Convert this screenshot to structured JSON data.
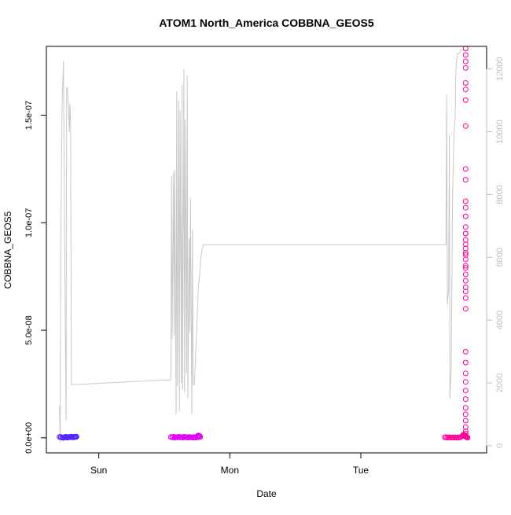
{
  "chart_data": {
    "type": "scatter",
    "title": "ATOM1 North_America COBBNA_GEOS5",
    "xlabel": "Date",
    "ylabel": "COBBNA_GEOS5",
    "x_ticks": [
      {
        "label": "Sun",
        "t": 1.0
      },
      {
        "label": "Mon",
        "t": 2.0
      },
      {
        "label": "Tue",
        "t": 3.0
      }
    ],
    "xlim": [
      0.6,
      3.96
    ],
    "ylim": [
      -7e-09,
      1.82e-07
    ],
    "y_ticks": [
      "0.0e+00",
      "5.0e-08",
      "1.0e-07",
      "1.5e-07"
    ],
    "y_tick_values": [
      0,
      5e-08,
      1e-07,
      1.5e-07
    ],
    "y2lim": [
      -230,
      12720
    ],
    "y2_ticks": [
      "0",
      "2000",
      "4000",
      "6000",
      "8000",
      "10000",
      "12000"
    ],
    "y2_tick_values": [
      0,
      2000,
      4000,
      6000,
      8000,
      10000,
      12000
    ],
    "colors": {
      "axis": "#000000",
      "secondary_axis": "#bebebe",
      "line": "#c8c8c8"
    },
    "series": [
      {
        "role": "secondary-line",
        "axis": "right",
        "color": "#c8c8c8",
        "x": [
          0.7,
          0.705,
          0.71,
          0.72,
          0.73,
          0.74,
          0.75,
          0.755,
          0.76,
          0.77,
          0.775,
          0.78,
          0.785,
          0.79,
          0.8,
          0.81,
          0.815,
          0.82,
          0.83,
          1.55,
          1.555,
          1.56,
          1.57,
          1.575,
          1.58,
          1.59,
          1.595,
          1.6,
          1.61,
          1.615,
          1.62,
          1.63,
          1.635,
          1.64,
          1.65,
          1.655,
          1.66,
          1.67,
          1.675,
          1.68,
          1.69,
          1.695,
          1.7,
          1.71,
          1.715,
          1.72,
          1.73,
          1.74,
          1.75,
          1.755,
          1.76,
          1.77,
          1.78,
          1.79,
          1.8,
          3.65,
          3.655,
          3.66,
          3.67,
          3.675,
          3.68,
          3.69,
          3.695,
          3.7,
          3.71,
          3.72,
          3.725,
          3.73,
          3.735,
          3.74,
          3.75,
          3.755,
          3.76,
          3.77,
          3.78,
          3.8,
          3.81,
          3.82
        ],
        "y": [
          1250,
          100,
          6200,
          10900,
          12250,
          6300,
          800,
          11400,
          11400,
          10700,
          10000,
          10900,
          10200,
          1950,
          1950,
          1950,
          1950,
          1950,
          1950,
          2100,
          8600,
          3400,
          8700,
          3500,
          8800,
          1000,
          11300,
          1900,
          11000,
          1100,
          10700,
          2000,
          11500,
          1800,
          12000,
          1700,
          10400,
          2300,
          11800,
          1500,
          6600,
          3600,
          7900,
          1000,
          6900,
          1950,
          1950,
          3000,
          4000,
          4500,
          5000,
          5500,
          6000,
          6300,
          6400,
          6400,
          11200,
          4500,
          5000,
          9900,
          1500,
          2500,
          5200,
          8000,
          9800,
          10500,
          11900,
          12300,
          12300,
          12500,
          12500,
          12500,
          12600,
          12600,
          12600,
          12600,
          12600,
          12600
        ]
      },
      {
        "role": "points-sat",
        "axis": "left",
        "color": "#5522ff",
        "x": [
          0.7,
          0.71,
          0.72,
          0.73,
          0.74,
          0.75,
          0.76,
          0.77,
          0.78,
          0.79,
          0.8,
          0.81,
          0.72,
          0.74,
          0.76,
          0.78,
          0.8,
          0.815,
          0.825,
          0.82,
          0.71,
          0.73,
          0.75,
          0.77,
          0.79,
          0.81,
          0.83
        ],
        "y": [
          4e-10,
          3e-10,
          2e-10,
          0.0,
          4e-10,
          5e-10,
          3e-10,
          2e-10,
          4e-10,
          6e-10,
          3e-10,
          5e-10,
          1e-10,
          2e-10,
          1e-10,
          3e-10,
          2e-10,
          4e-10,
          6e-10,
          4e-10,
          4e-10,
          1e-10,
          2e-10,
          4e-10,
          3e-10,
          2e-10,
          5e-10
        ]
      },
      {
        "role": "points-mon",
        "axis": "left",
        "color": "#dd00ee",
        "x": [
          1.55,
          1.56,
          1.57,
          1.58,
          1.59,
          1.6,
          1.61,
          1.62,
          1.63,
          1.64,
          1.65,
          1.66,
          1.67,
          1.68,
          1.69,
          1.7,
          1.71,
          1.72,
          1.73,
          1.74,
          1.75,
          1.755,
          1.76,
          1.765,
          1.77,
          1.775,
          1.56,
          1.58,
          1.6,
          1.62,
          1.64,
          1.66,
          1.68,
          1.7,
          1.72,
          1.74,
          1.76
        ],
        "y": [
          4e-10,
          3e-10,
          5e-10,
          4e-10,
          3e-10,
          2e-10,
          5e-10,
          4e-10,
          3e-10,
          2e-10,
          5e-10,
          4e-10,
          3e-10,
          2e-10,
          4e-10,
          3e-10,
          2e-10,
          1e-10,
          3e-10,
          2e-10,
          6e-10,
          9e-10,
          1.1e-09,
          1e-09,
          8e-10,
          5e-10,
          2e-10,
          1e-10,
          3e-10,
          2e-10,
          1e-10,
          2e-10,
          1e-10,
          2e-10,
          3e-10,
          1e-10,
          2e-10
        ]
      },
      {
        "role": "points-tue",
        "axis": "left",
        "color": "#ff0099",
        "x": [
          3.64,
          3.65,
          3.66,
          3.67,
          3.68,
          3.69,
          3.7,
          3.71,
          3.72,
          3.73,
          3.74,
          3.75,
          3.76,
          3.77,
          3.775,
          3.78,
          3.785,
          3.79,
          3.795,
          3.8,
          3.805,
          3.81,
          3.815,
          3.8,
          3.8,
          3.8,
          3.8,
          3.8,
          3.8,
          3.8,
          3.8,
          3.8,
          3.8,
          3.8,
          3.8,
          3.8,
          3.8,
          3.8,
          3.8,
          3.8,
          3.8,
          3.8,
          3.8,
          3.8,
          3.8,
          3.8,
          3.8,
          3.8,
          3.8,
          3.8,
          3.8,
          3.8,
          3.8,
          3.8,
          3.8,
          3.8,
          3.8,
          3.8,
          3.8,
          3.8,
          3.8,
          3.8,
          3.8,
          3.8,
          3.8,
          3.8
        ],
        "y": [
          2e-10,
          3e-10,
          1e-10,
          2e-10,
          2e-10,
          1e-10,
          2e-10,
          1e-10,
          2e-10,
          1e-10,
          2e-10,
          1e-10,
          3e-10,
          6e-10,
          9e-10,
          1.3e-09,
          1.5e-09,
          1.1e-09,
          8e-10,
          5e-10,
          3e-10,
          2e-10,
          1e-10,
          1e-09,
          2e-09,
          3e-09,
          5e-09,
          8e-09,
          1.1e-08,
          1.4e-08,
          1.8e-08,
          2.2e-08,
          2.6e-08,
          3e-08,
          3.5e-08,
          4e-08,
          6e-08,
          6.5e-08,
          6.8e-08,
          7e-08,
          7.3e-08,
          7.6e-08,
          7.9e-08,
          8.3e-08,
          8.6e-08,
          8.8e-08,
          9.2e-08,
          9.5e-08,
          9.8e-08,
          1.03e-07,
          1.07e-07,
          1.1e-07,
          1.2e-07,
          1.25e-07,
          1.45e-07,
          1.57e-07,
          1.62e-07,
          1.65e-07,
          1.72e-07,
          1.75e-07,
          1.78e-07,
          1.81e-07,
          8e-08,
          8.5e-08,
          9e-08,
          9.5e-08
        ]
      }
    ]
  }
}
